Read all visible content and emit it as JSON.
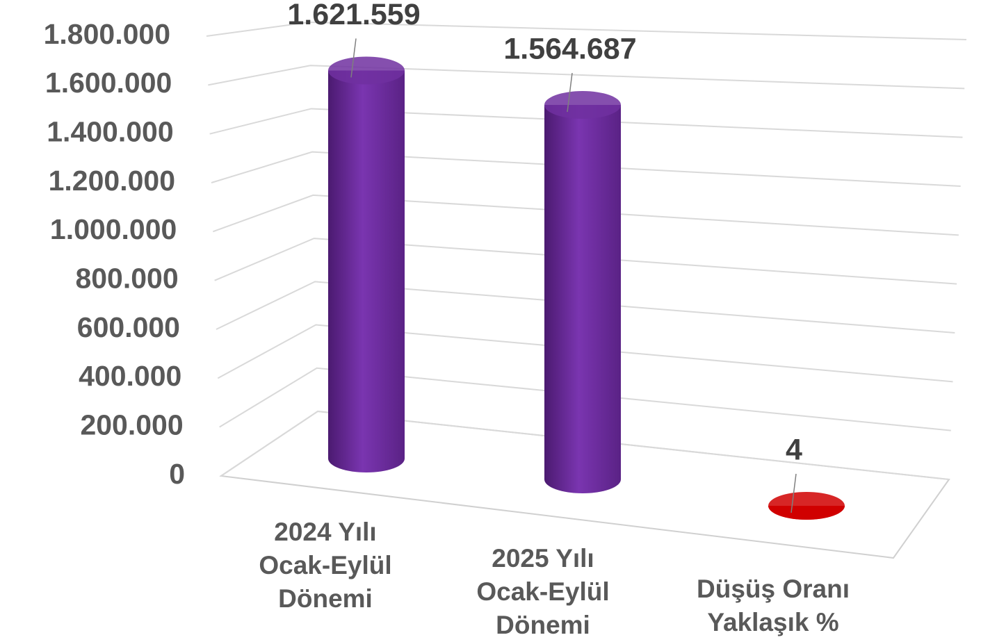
{
  "chart_data": {
    "type": "bar",
    "categories": [
      "2024 Yılı\nOcak-Eylül\nDönemi",
      "2025 Yılı\nOcak-Eylül\nDönemi",
      "Düşüş Oranı\nYaklaşık %"
    ],
    "values": [
      1621559,
      1564687,
      4
    ],
    "value_labels": [
      "1.621.559",
      "1.564.687",
      "4"
    ],
    "colors": [
      "#7030a0",
      "#7030a0",
      "#d00000"
    ],
    "ylim": [
      0,
      1800000
    ],
    "yticks": [
      0,
      {
        "value": 200000,
        "label": "200.000"
      },
      {
        "value": 400000,
        "label": "400.000"
      },
      {
        "value": 600000,
        "label": "600.000"
      },
      {
        "value": 800000,
        "label": "800.000"
      },
      {
        "value": 1000000,
        "label": "1.000.000"
      },
      {
        "value": 1200000,
        "label": "1.200.000"
      },
      {
        "value": 1400000,
        "label": "1.400.000"
      },
      {
        "value": 1600000,
        "label": "1.600.000"
      },
      {
        "value": 1800000,
        "label": "1.800.000"
      }
    ],
    "grid": true
  }
}
